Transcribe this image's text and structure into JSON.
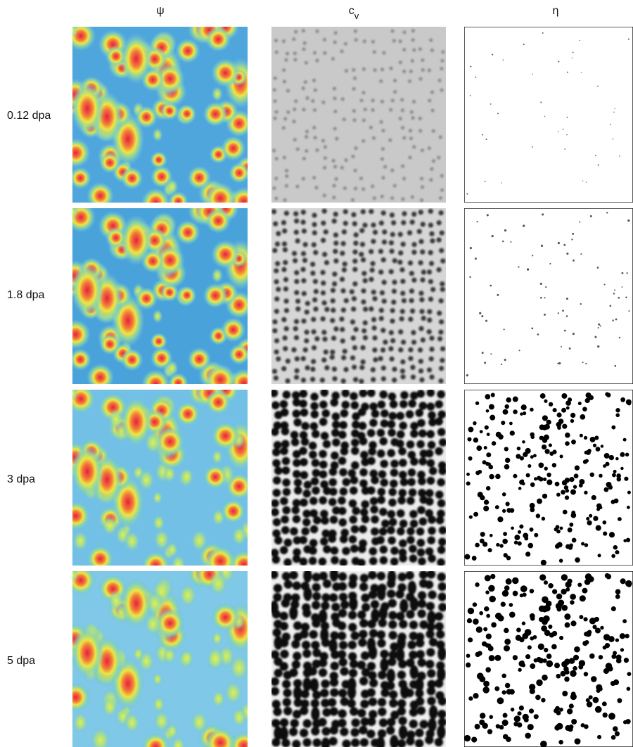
{
  "columns": [
    {
      "label": "ψ"
    },
    {
      "label": "c",
      "subscript": "v"
    },
    {
      "label": "η"
    }
  ],
  "rows": [
    "0.12 dpa",
    "1.8 dpa",
    "3 dpa",
    "5 dpa"
  ]
}
